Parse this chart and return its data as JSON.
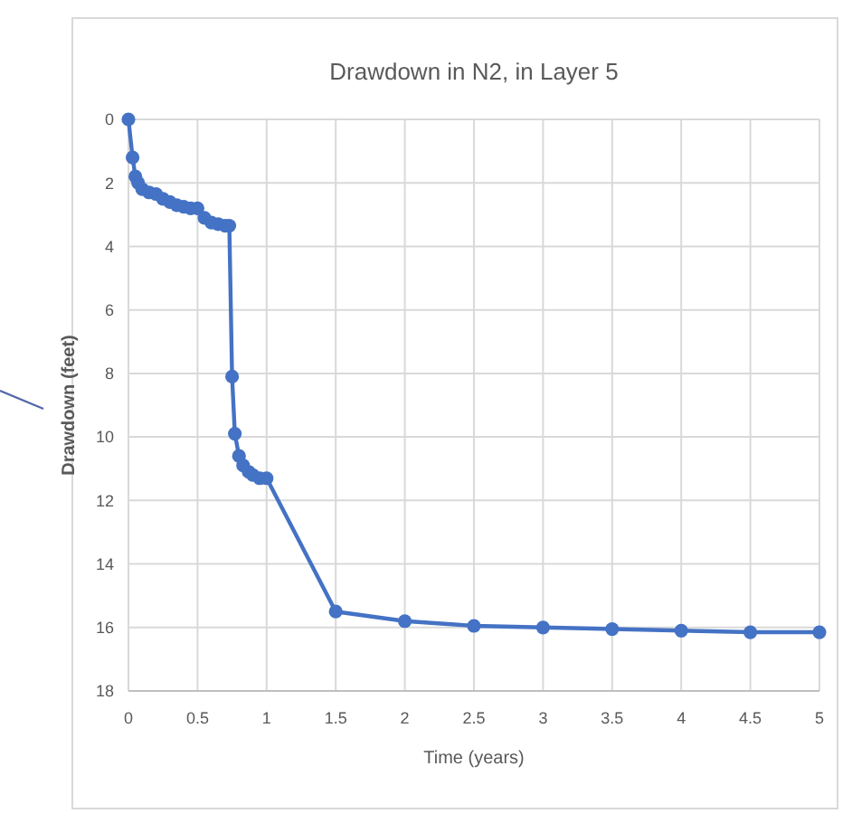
{
  "chart_data": {
    "type": "line",
    "title": "Drawdown in N2, in Layer 5",
    "xlabel": "Time (years)",
    "ylabel": "Drawdown (feet)",
    "x": [
      0,
      0.03,
      0.05,
      0.07,
      0.1,
      0.15,
      0.2,
      0.25,
      0.3,
      0.35,
      0.4,
      0.45,
      0.5,
      0.55,
      0.6,
      0.65,
      0.7,
      0.73,
      0.75,
      0.77,
      0.8,
      0.83,
      0.87,
      0.9,
      0.95,
      1,
      1.5,
      2,
      2.5,
      3,
      3.5,
      4,
      4.5,
      5
    ],
    "series": [
      {
        "color": "#4472c4",
        "values": [
          0,
          1.2,
          1.8,
          2.0,
          2.2,
          2.3,
          2.35,
          2.5,
          2.6,
          2.7,
          2.75,
          2.8,
          2.8,
          3.1,
          3.25,
          3.3,
          3.35,
          3.35,
          8.1,
          9.9,
          10.6,
          10.9,
          11.1,
          11.2,
          11.3,
          11.3,
          15.5,
          15.8,
          15.95,
          16.0,
          16.05,
          16.1,
          16.15,
          16.15
        ]
      }
    ],
    "xlim": [
      0,
      5
    ],
    "xticks": [
      0,
      0.5,
      1,
      1.5,
      2,
      2.5,
      3,
      3.5,
      4,
      4.5,
      5
    ],
    "ylim": [
      18,
      0
    ],
    "yticks": [
      0,
      2,
      4,
      6,
      8,
      10,
      12,
      14,
      16,
      18
    ],
    "grid": true,
    "marker": "circle",
    "line_style": "solid"
  }
}
